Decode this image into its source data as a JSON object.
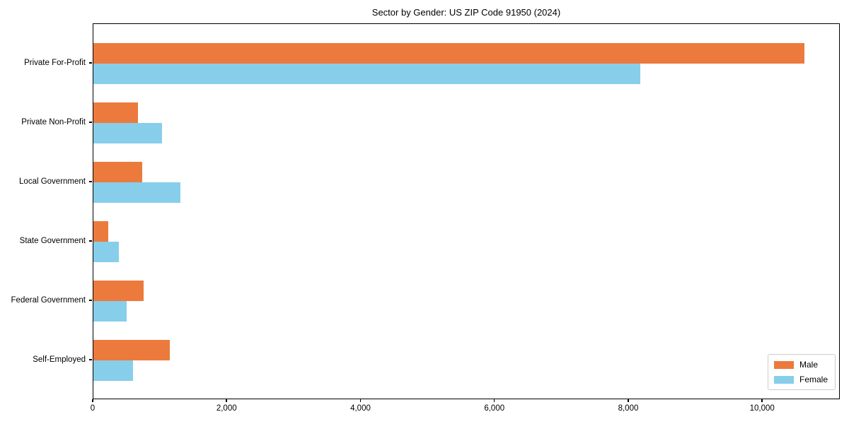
{
  "title": "Sector by Gender: US ZIP Code 91950 (2024)",
  "colors": {
    "male": "#EC7A3D",
    "female": "#87CEEB",
    "axis": "#000000",
    "legend_border": "#cccccc"
  },
  "chart_data": {
    "type": "bar",
    "orientation": "horizontal",
    "title": "Sector by Gender: US ZIP Code 91950 (2024)",
    "categories": [
      "Private For-Profit",
      "Private Non-Profit",
      "Local Government",
      "State Government",
      "Federal Government",
      "Self-Employed"
    ],
    "series": [
      {
        "name": "Male",
        "color": "#EC7A3D",
        "values": [
          10625,
          670,
          725,
          220,
          745,
          1140
        ]
      },
      {
        "name": "Female",
        "color": "#87CEEB",
        "values": [
          8170,
          1020,
          1300,
          375,
          500,
          590
        ]
      }
    ],
    "xlabel": "",
    "ylabel": "",
    "xlim": [
      0,
      11160
    ],
    "x_ticks": [
      0,
      2000,
      4000,
      6000,
      8000,
      10000
    ],
    "x_tick_labels": [
      "0",
      "2,000",
      "4,000",
      "6,000",
      "8,000",
      "10,000"
    ],
    "grid": false,
    "legend_position": "lower right",
    "legend": {
      "items": [
        {
          "label": "Male"
        },
        {
          "label": "Female"
        }
      ]
    }
  }
}
